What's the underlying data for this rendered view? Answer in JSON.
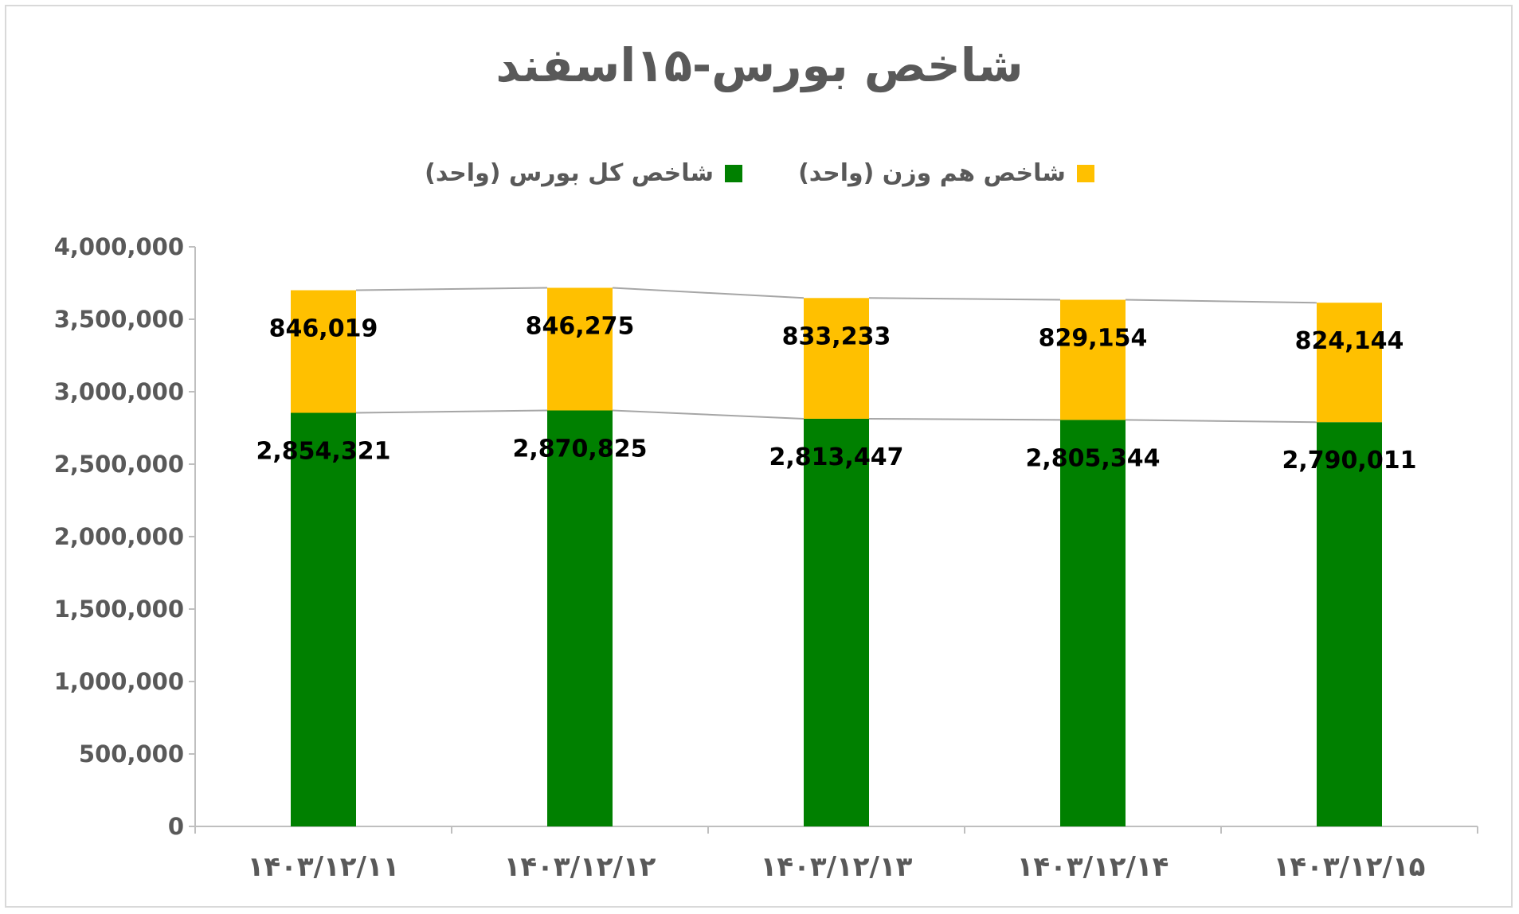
{
  "chart_data": {
    "type": "bar",
    "stacked": true,
    "title": "شاخص بورس-۱۵اسفند",
    "xlabel": "",
    "ylabel": "",
    "categories": [
      "۱۴۰۳/۱۲/۱۱",
      "۱۴۰۳/۱۲/۱۲",
      "۱۴۰۳/۱۲/۱۳",
      "۱۴۰۳/۱۲/۱۴",
      "۱۴۰۳/۱۲/۱۵"
    ],
    "series": [
      {
        "name": "شاخص کل بورس (واحد)",
        "color": "#008000",
        "values": [
          2854321,
          2870825,
          2813447,
          2805344,
          2790011
        ],
        "labels": [
          "2,854,321",
          "2,870,825",
          "2,813,447",
          "2,805,344",
          "2,790,011"
        ]
      },
      {
        "name": "شاخص هم وزن (واحد)",
        "color": "#ffc000",
        "values": [
          846019,
          846275,
          833233,
          829154,
          824144
        ],
        "labels": [
          "846,019",
          "846,275",
          "833,233",
          "829,154",
          "824,144"
        ]
      }
    ],
    "ylim": [
      0,
      4000000
    ],
    "yticks": [
      0,
      500000,
      1000000,
      1500000,
      2000000,
      2500000,
      3000000,
      3500000,
      4000000
    ],
    "ytick_labels": [
      "0",
      "500,000",
      "1,000,000",
      "1,500,000",
      "2,000,000",
      "2,500,000",
      "3,000,000",
      "3,500,000",
      "4,000,000"
    ],
    "legend_position": "top",
    "series_lines": true,
    "grid": false
  }
}
